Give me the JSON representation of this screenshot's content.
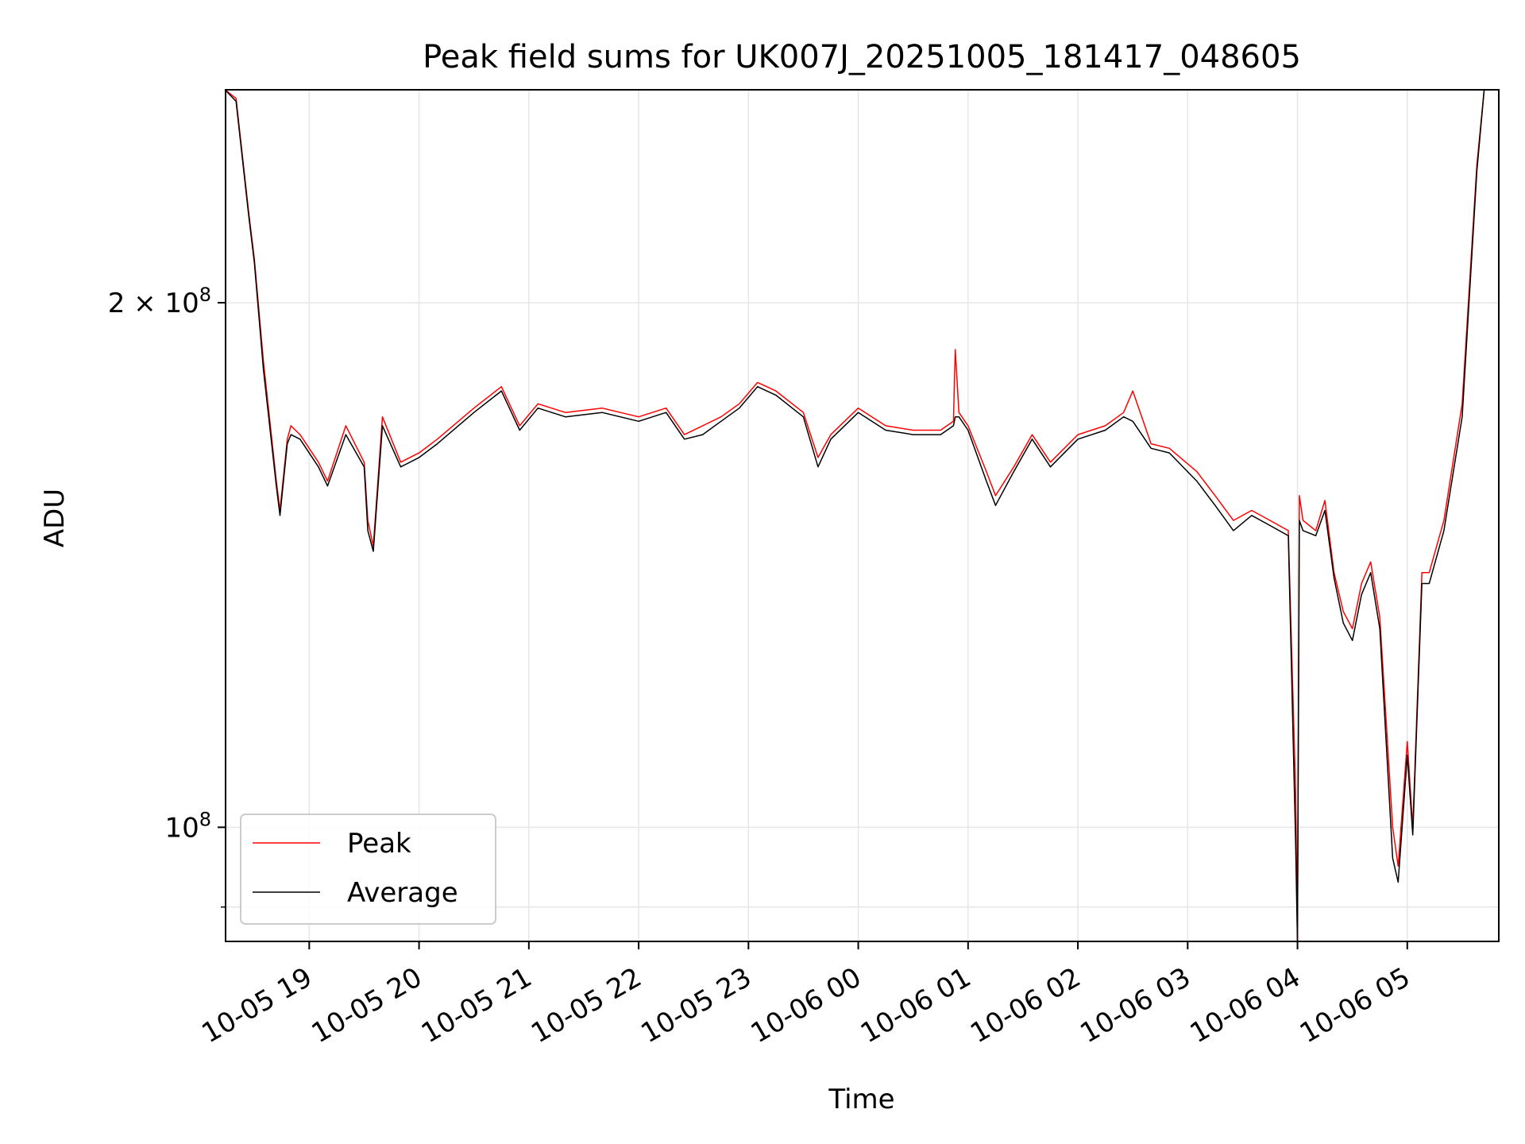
{
  "chart_data": {
    "type": "line",
    "title": "Peak field sums for UK007J_20251005_181417_048605",
    "xlabel": "Time",
    "ylabel": "ADU",
    "yscale": "log",
    "xlim": [
      "2025-10-05 18:14:17",
      "2025-10-06 05:50:00"
    ],
    "ylim": [
      86000000,
      265000000
    ],
    "grid": true,
    "legend_position": "lower-left",
    "x_ticks": [
      {
        "t": "2025-10-05 19:00",
        "label": "10-05 19"
      },
      {
        "t": "2025-10-05 20:00",
        "label": "10-05 20"
      },
      {
        "t": "2025-10-05 21:00",
        "label": "10-05 21"
      },
      {
        "t": "2025-10-05 22:00",
        "label": "10-05 22"
      },
      {
        "t": "2025-10-05 23:00",
        "label": "10-05 23"
      },
      {
        "t": "2025-10-06 00:00",
        "label": "10-06 00"
      },
      {
        "t": "2025-10-06 01:00",
        "label": "10-06 01"
      },
      {
        "t": "2025-10-06 02:00",
        "label": "10-06 02"
      },
      {
        "t": "2025-10-06 03:00",
        "label": "10-06 03"
      },
      {
        "t": "2025-10-06 04:00",
        "label": "10-06 04"
      },
      {
        "t": "2025-10-06 05:00",
        "label": "10-06 05"
      }
    ],
    "y_ticks": [
      {
        "value": 200000000,
        "base": "2 × 10",
        "exp": "8"
      },
      {
        "value": 100000000,
        "base": "10",
        "exp": "8"
      }
    ],
    "y_minor_ticks": [
      90000000
    ],
    "series": [
      {
        "name": "Peak",
        "color": "#ff0000",
        "x": [
          "2025-10-05 18:14",
          "2025-10-05 18:20",
          "2025-10-05 18:27",
          "2025-10-05 18:30",
          "2025-10-05 18:35",
          "2025-10-05 18:42",
          "2025-10-05 18:44",
          "2025-10-05 18:48",
          "2025-10-05 18:50",
          "2025-10-05 18:55",
          "2025-10-05 19:05",
          "2025-10-05 19:10",
          "2025-10-05 19:20",
          "2025-10-05 19:30",
          "2025-10-05 19:32",
          "2025-10-05 19:35",
          "2025-10-05 19:40",
          "2025-10-05 19:50",
          "2025-10-05 20:00",
          "2025-10-05 20:10",
          "2025-10-05 20:30",
          "2025-10-05 20:45",
          "2025-10-05 20:55",
          "2025-10-05 21:05",
          "2025-10-05 21:20",
          "2025-10-05 21:40",
          "2025-10-05 22:00",
          "2025-10-05 22:15",
          "2025-10-05 22:25",
          "2025-10-05 22:35",
          "2025-10-05 22:45",
          "2025-10-05 22:55",
          "2025-10-05 23:05",
          "2025-10-05 23:15",
          "2025-10-05 23:30",
          "2025-10-05 23:38",
          "2025-10-05 23:45",
          "2025-10-06 00:00",
          "2025-10-06 00:15",
          "2025-10-06 00:30",
          "2025-10-06 00:45",
          "2025-10-06 00:52",
          "2025-10-06 00:53",
          "2025-10-06 00:55",
          "2025-10-06 01:00",
          "2025-10-06 01:10",
          "2025-10-06 01:15",
          "2025-10-06 01:25",
          "2025-10-06 01:35",
          "2025-10-06 01:45",
          "2025-10-06 02:00",
          "2025-10-06 02:15",
          "2025-10-06 02:25",
          "2025-10-06 02:30",
          "2025-10-06 02:40",
          "2025-10-06 02:50",
          "2025-10-06 03:05",
          "2025-10-06 03:15",
          "2025-10-06 03:25",
          "2025-10-06 03:35",
          "2025-10-06 03:45",
          "2025-10-06 03:55",
          "2025-10-06 03:59",
          "2025-10-06 04:00",
          "2025-10-06 04:01",
          "2025-10-06 04:03",
          "2025-10-06 04:10",
          "2025-10-06 04:15",
          "2025-10-06 04:20",
          "2025-10-06 04:25",
          "2025-10-06 04:30",
          "2025-10-06 04:35",
          "2025-10-06 04:40",
          "2025-10-06 04:45",
          "2025-10-06 04:52",
          "2025-10-06 04:55",
          "2025-10-06 05:00",
          "2025-10-06 05:03",
          "2025-10-06 05:08",
          "2025-10-06 05:12",
          "2025-10-06 05:20",
          "2025-10-06 05:30",
          "2025-10-06 05:38",
          "2025-10-06 05:42",
          "2025-10-06 05:50"
        ],
        "values": [
          265000000,
          262000000,
          225000000,
          212000000,
          185000000,
          158000000,
          152000000,
          167000000,
          170000000,
          168000000,
          162000000,
          158000000,
          170000000,
          162000000,
          150000000,
          145000000,
          172000000,
          162000000,
          164000000,
          167000000,
          174000000,
          179000000,
          170000000,
          175000000,
          173000000,
          174000000,
          172000000,
          174000000,
          168000000,
          170000000,
          172000000,
          175000000,
          180000000,
          178000000,
          173000000,
          163000000,
          168000000,
          174000000,
          170000000,
          169000000,
          169000000,
          171000000,
          188000000,
          173000000,
          170000000,
          160000000,
          155000000,
          161000000,
          168000000,
          162000000,
          168000000,
          170000000,
          173000000,
          178000000,
          166000000,
          165000000,
          160000000,
          155000000,
          150000000,
          152000000,
          150000000,
          148000000,
          105000000,
          86000000,
          155000000,
          150000000,
          148000000,
          154000000,
          140000000,
          133000000,
          130000000,
          138000000,
          142000000,
          132000000,
          100000000,
          95000000,
          112000000,
          100000000,
          140000000,
          140000000,
          150000000,
          175000000,
          240000000,
          265000000,
          265000000
        ]
      },
      {
        "name": "Average",
        "color": "#000000",
        "x": [
          "2025-10-05 18:14",
          "2025-10-05 18:20",
          "2025-10-05 18:27",
          "2025-10-05 18:30",
          "2025-10-05 18:35",
          "2025-10-05 18:42",
          "2025-10-05 18:44",
          "2025-10-05 18:48",
          "2025-10-05 18:50",
          "2025-10-05 18:55",
          "2025-10-05 19:05",
          "2025-10-05 19:10",
          "2025-10-05 19:20",
          "2025-10-05 19:30",
          "2025-10-05 19:32",
          "2025-10-05 19:35",
          "2025-10-05 19:40",
          "2025-10-05 19:50",
          "2025-10-05 20:00",
          "2025-10-05 20:10",
          "2025-10-05 20:30",
          "2025-10-05 20:45",
          "2025-10-05 20:55",
          "2025-10-05 21:05",
          "2025-10-05 21:20",
          "2025-10-05 21:40",
          "2025-10-05 22:00",
          "2025-10-05 22:15",
          "2025-10-05 22:25",
          "2025-10-05 22:35",
          "2025-10-05 22:45",
          "2025-10-05 22:55",
          "2025-10-05 23:05",
          "2025-10-05 23:15",
          "2025-10-05 23:30",
          "2025-10-05 23:38",
          "2025-10-05 23:45",
          "2025-10-06 00:00",
          "2025-10-06 00:15",
          "2025-10-06 00:30",
          "2025-10-06 00:45",
          "2025-10-06 00:52",
          "2025-10-06 00:53",
          "2025-10-06 00:55",
          "2025-10-06 01:00",
          "2025-10-06 01:10",
          "2025-10-06 01:15",
          "2025-10-06 01:25",
          "2025-10-06 01:35",
          "2025-10-06 01:45",
          "2025-10-06 02:00",
          "2025-10-06 02:15",
          "2025-10-06 02:25",
          "2025-10-06 02:30",
          "2025-10-06 02:40",
          "2025-10-06 02:50",
          "2025-10-06 03:05",
          "2025-10-06 03:15",
          "2025-10-06 03:25",
          "2025-10-06 03:35",
          "2025-10-06 03:45",
          "2025-10-06 03:55",
          "2025-10-06 03:59",
          "2025-10-06 04:00",
          "2025-10-06 04:01",
          "2025-10-06 04:03",
          "2025-10-06 04:10",
          "2025-10-06 04:15",
          "2025-10-06 04:20",
          "2025-10-06 04:25",
          "2025-10-06 04:30",
          "2025-10-06 04:35",
          "2025-10-06 04:40",
          "2025-10-06 04:45",
          "2025-10-06 04:52",
          "2025-10-06 04:55",
          "2025-10-06 05:00",
          "2025-10-06 05:03",
          "2025-10-06 05:08",
          "2025-10-06 05:12",
          "2025-10-06 05:20",
          "2025-10-06 05:30",
          "2025-10-06 05:38",
          "2025-10-06 05:42",
          "2025-10-06 05:50"
        ],
        "values": [
          265000000,
          261000000,
          224000000,
          211000000,
          183000000,
          157000000,
          151000000,
          166000000,
          168000000,
          167000000,
          161000000,
          157000000,
          168000000,
          161000000,
          148000000,
          144000000,
          170000000,
          161000000,
          163000000,
          166000000,
          173000000,
          178000000,
          169000000,
          174000000,
          172000000,
          173000000,
          171000000,
          173000000,
          167000000,
          168000000,
          171000000,
          174000000,
          179000000,
          177000000,
          172000000,
          161000000,
          167000000,
          173000000,
          169000000,
          168000000,
          168000000,
          170000000,
          172000000,
          172000000,
          169000000,
          158000000,
          153000000,
          160000000,
          167000000,
          161000000,
          167000000,
          169000000,
          172000000,
          171000000,
          165000000,
          164000000,
          158000000,
          153000000,
          148000000,
          151000000,
          149000000,
          147000000,
          98000000,
          86000000,
          150000000,
          148000000,
          147000000,
          152000000,
          139000000,
          131000000,
          128000000,
          136000000,
          140000000,
          130000000,
          96000000,
          93000000,
          110000000,
          99000000,
          138000000,
          138000000,
          148000000,
          172000000,
          238000000,
          265000000,
          265000000
        ]
      }
    ]
  }
}
